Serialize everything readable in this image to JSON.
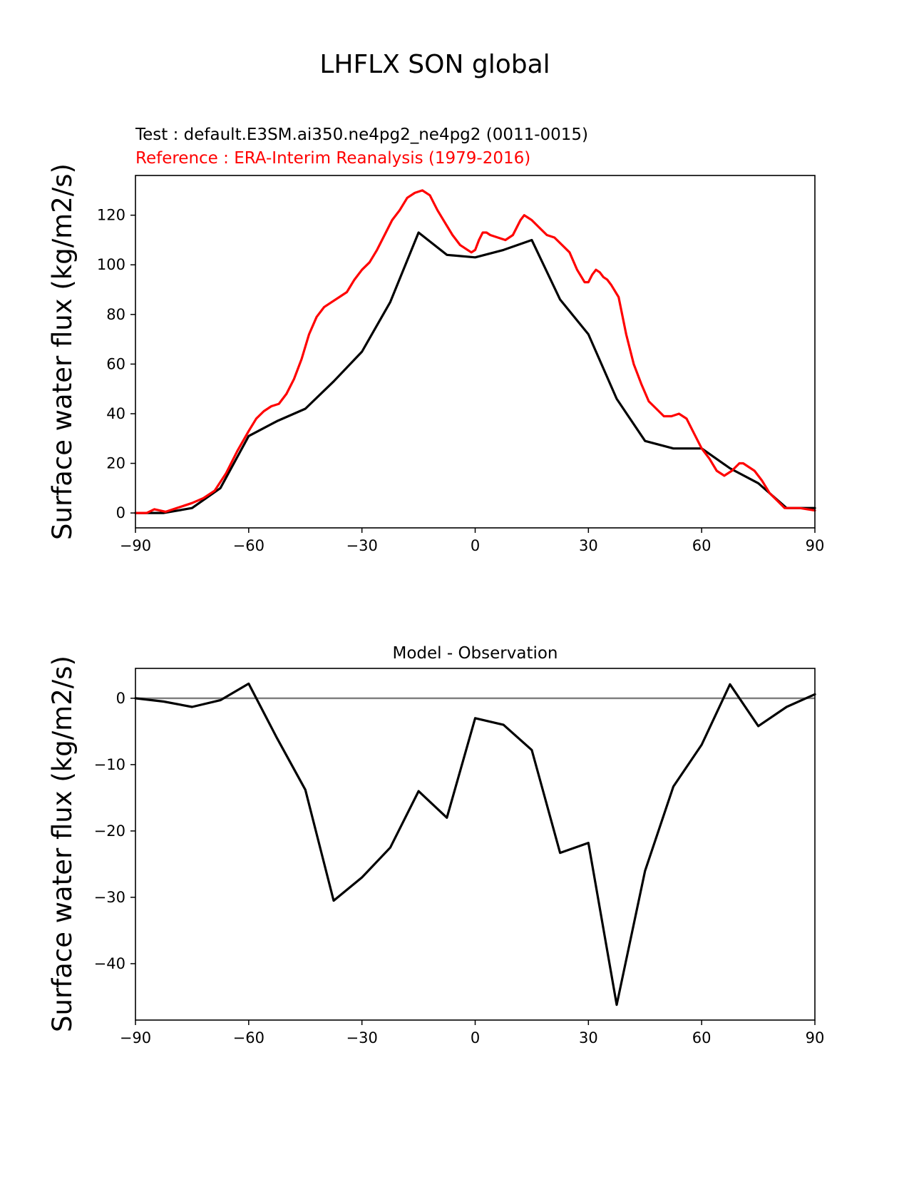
{
  "suptitle": "LHFLX SON global",
  "chart_data": [
    {
      "type": "line",
      "ylabel": "Surface water flux (kg/m2/s)",
      "xlim": [
        -90,
        90
      ],
      "ylim": [
        -6,
        136
      ],
      "xticks": [
        -90,
        -60,
        -30,
        0,
        30,
        60,
        90
      ],
      "xtick_labels": [
        "−90",
        "−60",
        "−30",
        "0",
        "30",
        "60",
        "90"
      ],
      "yticks": [
        0,
        20,
        40,
        60,
        80,
        100,
        120
      ],
      "ytick_labels": [
        "0",
        "20",
        "40",
        "60",
        "80",
        "100",
        "120"
      ],
      "legend": [
        {
          "label": "Test : default.E3SM.ai350.ne4pg2_ne4pg2 (0011-0015)",
          "color": "#000000"
        },
        {
          "label": "Reference : ERA-Interim Reanalysis (1979-2016)",
          "color": "#ff0000"
        }
      ],
      "series": [
        {
          "name": "Test",
          "color": "#000000",
          "x": [
            -90,
            -82.5,
            -75,
            -67.5,
            -60,
            -52.5,
            -45,
            -37.5,
            -30,
            -22.5,
            -15,
            -7.5,
            0,
            7.5,
            15,
            22.5,
            30,
            37.5,
            45,
            52.5,
            60,
            67.5,
            75,
            82.5,
            90
          ],
          "y": [
            0,
            0,
            2,
            10,
            31,
            37,
            42,
            53,
            65,
            85,
            113,
            104,
            103,
            106,
            110,
            86,
            72,
            46,
            29,
            26,
            26,
            18,
            12,
            2,
            2
          ]
        },
        {
          "name": "Reference",
          "color": "#ff0000",
          "x": [
            -90,
            -87,
            -85,
            -82,
            -79,
            -77,
            -75,
            -72,
            -69,
            -66,
            -63,
            -60,
            -58,
            -56,
            -54,
            -52,
            -50,
            -48,
            -46,
            -44,
            -42,
            -40,
            -38,
            -36,
            -34,
            -32,
            -30,
            -28,
            -26,
            -24,
            -22,
            -20,
            -18,
            -16,
            -14,
            -12,
            -11,
            -10,
            -8,
            -6,
            -4,
            -2,
            -1,
            0,
            1,
            2,
            3,
            4,
            6,
            8,
            10,
            12,
            13,
            14,
            15,
            17,
            19,
            21,
            23,
            25,
            27,
            29,
            30,
            31,
            32,
            33,
            34,
            35,
            36,
            38,
            40,
            42,
            44,
            46,
            48,
            50,
            52,
            54,
            56,
            58,
            60,
            62,
            64,
            66,
            68,
            70,
            71,
            72,
            74,
            76,
            78,
            80,
            82,
            84,
            86,
            88,
            90
          ],
          "y": [
            0,
            0,
            1.5,
            0.5,
            2,
            3,
            4,
            6,
            9,
            16,
            25,
            33,
            38,
            41,
            43,
            44,
            48,
            54,
            62,
            72,
            79,
            83,
            85,
            87,
            89,
            94,
            98,
            101,
            106,
            112,
            118,
            122,
            127,
            129,
            130,
            128,
            125,
            122,
            117,
            112,
            108,
            106,
            105,
            106,
            110,
            113,
            113,
            112,
            111,
            110,
            112,
            118,
            120,
            119,
            118,
            115,
            112,
            111,
            108,
            105,
            98,
            93,
            93,
            96,
            98,
            97,
            95,
            94,
            92,
            87,
            72,
            60,
            52,
            45,
            42,
            39,
            39,
            40,
            38,
            32,
            26,
            22,
            17,
            15,
            17,
            20,
            20,
            19,
            17,
            13,
            8,
            5,
            2,
            2,
            2,
            1.5,
            1
          ]
        }
      ]
    },
    {
      "type": "line",
      "title": "Model - Observation",
      "ylabel": "Surface water flux (kg/m2/s)",
      "xlim": [
        -90,
        90
      ],
      "ylim": [
        -48.5,
        4.5
      ],
      "xticks": [
        -90,
        -60,
        -30,
        0,
        30,
        60,
        90
      ],
      "xtick_labels": [
        "−90",
        "−60",
        "−30",
        "0",
        "30",
        "60",
        "90"
      ],
      "yticks": [
        -40,
        -30,
        -20,
        -10,
        0
      ],
      "ytick_labels": [
        "−40",
        "−30",
        "−20",
        "−10",
        "0"
      ],
      "zero_line": {
        "y": 0,
        "color": "#808080"
      },
      "series": [
        {
          "name": "Difference",
          "color": "#000000",
          "x": [
            -90,
            -82.5,
            -75,
            -67.5,
            -60,
            -52.5,
            -45,
            -37.5,
            -30,
            -22.5,
            -15,
            -7.5,
            0,
            7.5,
            15,
            22.5,
            30,
            37.5,
            45,
            52.5,
            60,
            67.5,
            75,
            82.5,
            90
          ],
          "y": [
            0,
            -0.5,
            -1.3,
            -0.3,
            2.2,
            -6,
            -13.8,
            -30.5,
            -27,
            -22.5,
            -14,
            -18,
            -3,
            -4,
            -7.8,
            -23.3,
            -21.8,
            -46.2,
            -26,
            -13.3,
            -7,
            2.1,
            -4.2,
            -1.3,
            0.6
          ]
        }
      ]
    }
  ]
}
